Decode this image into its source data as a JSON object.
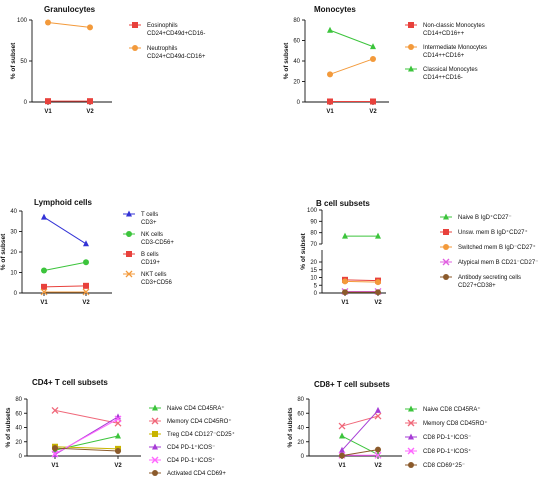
{
  "chart_data": [
    {
      "type": "line",
      "title": "Granulocytes",
      "ylabel": "% of subset",
      "categories": [
        "V1",
        "V2"
      ],
      "ylim": [
        0,
        100
      ],
      "yticks": [
        "0",
        "50",
        "100"
      ],
      "yticks_val": [
        0,
        50,
        100
      ],
      "series": [
        {
          "name": "Eosinophils\nCD24+CD49d+CD16-",
          "color": "#e8413c",
          "marker": "square",
          "values": [
            1,
            1
          ]
        },
        {
          "name": "Neutrophils\nCD24+CD49d-CD16+",
          "color": "#f39a3b",
          "marker": "dot",
          "values": [
            97,
            91
          ]
        }
      ]
    },
    {
      "type": "line",
      "title": "Monocytes",
      "ylabel": "% of subset",
      "categories": [
        "V1",
        "V2"
      ],
      "ylim": [
        0,
        80
      ],
      "yticks": [
        "0",
        "20",
        "40",
        "60",
        "80"
      ],
      "yticks_val": [
        0,
        20,
        40,
        60,
        80
      ],
      "series": [
        {
          "name": "Non-classic Monocytes\nCD14+CD16++",
          "color": "#e8413c",
          "marker": "square",
          "values": [
            0.5,
            0.5
          ]
        },
        {
          "name": "Intermediate Monocytes\nCD14++CD16+",
          "color": "#f39a3b",
          "marker": "dot",
          "values": [
            27,
            42
          ]
        },
        {
          "name": "Classical  Monocytes\nCD14++CD16-",
          "color": "#3cc43c",
          "marker": "triangle",
          "values": [
            70,
            54
          ]
        }
      ]
    },
    {
      "type": "line",
      "title": "Lymphoid cells",
      "ylabel": "% of subset",
      "categories": [
        "V1",
        "V2"
      ],
      "ylim": [
        0,
        40
      ],
      "yticks": [
        "0",
        "10",
        "20",
        "30",
        "40"
      ],
      "yticks_val": [
        0,
        10,
        20,
        30,
        40
      ],
      "series": [
        {
          "name": "T cells\nCD3+",
          "color": "#3333d6",
          "marker": "triangle",
          "values": [
            37,
            24
          ]
        },
        {
          "name": "NK cells\nCD3-CD56+",
          "color": "#3cc43c",
          "marker": "dot",
          "values": [
            11,
            15
          ]
        },
        {
          "name": "B cells\nCD19+",
          "color": "#e8413c",
          "marker": "square",
          "values": [
            3,
            3.5
          ]
        },
        {
          "name": "NKT cells\nCD3+CD56",
          "color": "#f39a3b",
          "marker": "x",
          "values": [
            0.5,
            0.5
          ]
        }
      ]
    },
    {
      "type": "line",
      "title": "B cell subsets",
      "ylabel": "% of subset",
      "categories": [
        "V1",
        "V2"
      ],
      "ylim": [
        0,
        100
      ],
      "yticks": [
        "0",
        "5",
        "10",
        "15",
        "20",
        "70",
        "80",
        "90",
        "100"
      ],
      "yticks_val": [
        0,
        5,
        10,
        15,
        20,
        70,
        80,
        90,
        100
      ],
      "series": [
        {
          "name": "Naive B IgD⁺CD27⁻",
          "color": "#3cc43c",
          "marker": "triangle",
          "values": [
            77,
            77
          ]
        },
        {
          "name": "Unsw. mem B IgD⁺CD27⁺",
          "color": "#e8413c",
          "marker": "square",
          "values": [
            8.5,
            8
          ]
        },
        {
          "name": "Switched mem B IgD⁻CD27⁺",
          "color": "#f39a3b",
          "marker": "dot",
          "values": [
            7.5,
            7
          ]
        },
        {
          "name": "Atypical mem B CD21⁻CD27⁻",
          "color": "#e060e0",
          "marker": "x",
          "values": [
            1,
            1
          ]
        },
        {
          "name": "Antibody secreting cells\nCD27+CD38+",
          "color": "#8b5a2b",
          "marker": "dot",
          "values": [
            0.5,
            0.5
          ]
        }
      ]
    },
    {
      "type": "line",
      "title": "CD4+ T cell subsets",
      "ylabel": "% of subsets",
      "categories": [
        "V1",
        "V2"
      ],
      "ylim": [
        0,
        80
      ],
      "yticks": [
        "0",
        "20",
        "40",
        "60",
        "80"
      ],
      "yticks_val": [
        0,
        20,
        40,
        60,
        80
      ],
      "series": [
        {
          "name": "Naive CD4 CD45RA⁺",
          "color": "#3cc43c",
          "marker": "triangle",
          "values": [
            8,
            28
          ]
        },
        {
          "name": "Memory CD4 CD45RO⁺",
          "color": "#f0687a",
          "marker": "x",
          "values": [
            64,
            46
          ]
        },
        {
          "name": "Treg CD4 CD127⁻CD25⁺",
          "color": "#c8b400",
          "marker": "square",
          "values": [
            13,
            10
          ]
        },
        {
          "name": "CD4 PD-1⁺ICOS⁻",
          "color": "#a63cd6",
          "marker": "triangle",
          "values": [
            2,
            55
          ]
        },
        {
          "name": "CD4 PD-1⁺ICOS⁺",
          "color": "#ff66ff",
          "marker": "x",
          "values": [
            3,
            52
          ]
        },
        {
          "name": "Activated CD4 CD69+",
          "color": "#8b5a2b",
          "marker": "dot",
          "values": [
            11,
            7
          ]
        }
      ]
    },
    {
      "type": "line",
      "title": "CD8+ T cell subsets",
      "ylabel": "% of subsets",
      "categories": [
        "V1",
        "V2"
      ],
      "ylim": [
        0,
        80
      ],
      "yticks": [
        "0",
        "20",
        "40",
        "60",
        "80"
      ],
      "yticks_val": [
        0,
        20,
        40,
        60,
        80
      ],
      "series": [
        {
          "name": "Naive CD8 CD45RA⁺",
          "color": "#3cc43c",
          "marker": "triangle",
          "values": [
            28,
            2
          ]
        },
        {
          "name": "Memory CD8 CD45RO⁺",
          "color": "#f0687a",
          "marker": "x",
          "values": [
            42,
            56
          ]
        },
        {
          "name": "CD8 PD-1⁺ICOS⁻",
          "color": "#a63cd6",
          "marker": "triangle",
          "values": [
            8,
            64
          ]
        },
        {
          "name": "CD8 PD-1⁺ICOS⁺",
          "color": "#ff66ff",
          "marker": "x",
          "values": [
            1,
            1
          ]
        },
        {
          "name": "CD8 CD69⁺25⁻",
          "color": "#8b5a2b",
          "marker": "dot",
          "values": [
            0.5,
            9
          ]
        }
      ]
    }
  ]
}
